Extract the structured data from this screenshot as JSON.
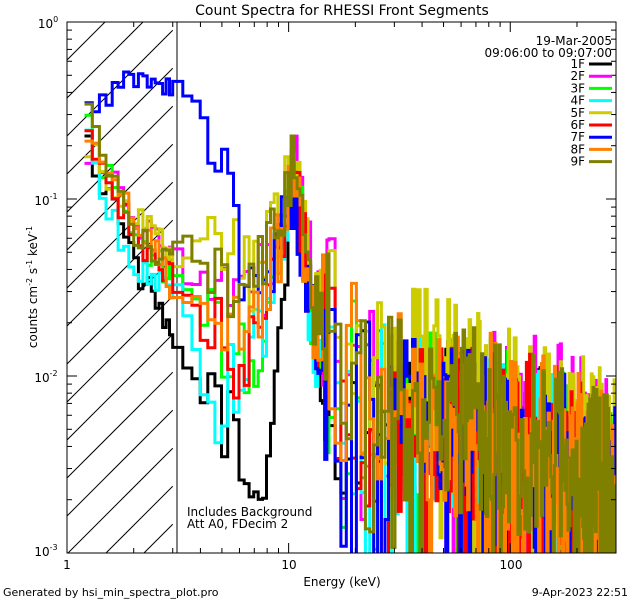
{
  "chart_data": {
    "type": "line",
    "title": "Count Spectra for RHESSI Front Segments",
    "xlabel": "Energy (keV)",
    "ylabel_parts": [
      "counts cm",
      "-2",
      " s",
      "-1",
      " keV",
      "-1"
    ],
    "xscale": "log",
    "yscale": "log",
    "xlim": [
      1,
      300
    ],
    "ylim": [
      0.001,
      1
    ],
    "x_ticks": [
      {
        "value": 10,
        "label": "10"
      },
      {
        "value": 100,
        "label": "100"
      }
    ],
    "x_tick_extra": {
      "value": 1,
      "label": "1"
    },
    "y_ticks": [
      {
        "value": 1,
        "base": "10",
        "exp": "0"
      },
      {
        "value": 0.1,
        "base": "10",
        "exp": "-1"
      },
      {
        "value": 0.01,
        "base": "10",
        "exp": "-2"
      },
      {
        "value": 0.001,
        "base": "10",
        "exp": "-3"
      }
    ],
    "date": "19-Mar-2005",
    "time_range": "09:06:00 to 09:07:00",
    "notes": [
      "Includes Background",
      "Att A0, FDecim 2"
    ],
    "hatched_region": {
      "x_from": 1,
      "x_to": 3
    },
    "footer_left": "Generated by hsi_min_spectra_plot.pro",
    "footer_right": "9-Apr-2023 22:51",
    "legend_position": "top-right",
    "series": [
      {
        "name": "1F",
        "color": "#000000",
        "anchors": [
          [
            1.2,
            0.2
          ],
          [
            1.4,
            0.12
          ],
          [
            1.6,
            0.095
          ],
          [
            1.8,
            0.07
          ],
          [
            2.0,
            0.04
          ],
          [
            2.3,
            0.03
          ],
          [
            2.6,
            0.022
          ],
          [
            3.0,
            0.014
          ],
          [
            3.5,
            0.01
          ],
          [
            4.0,
            0.008
          ],
          [
            5.0,
            0.006
          ],
          [
            6.0,
            0.003
          ],
          [
            7.0,
            0.002
          ],
          [
            8.0,
            0.004
          ],
          [
            9.0,
            0.02
          ],
          [
            10.5,
            0.13
          ],
          [
            11.5,
            0.05
          ],
          [
            13,
            0.015
          ],
          [
            16,
            0.008
          ],
          [
            20,
            0.007
          ],
          [
            30,
            0.005
          ],
          [
            50,
            0.005
          ],
          [
            80,
            0.004
          ],
          [
            120,
            0.004
          ],
          [
            200,
            0.003
          ],
          [
            300,
            0.002
          ]
        ]
      },
      {
        "name": "2F",
        "color": "#ff00ff",
        "anchors": [
          [
            1.2,
            0.18
          ],
          [
            1.4,
            0.16
          ],
          [
            1.6,
            0.13
          ],
          [
            1.8,
            0.11
          ],
          [
            2.0,
            0.07
          ],
          [
            2.5,
            0.06
          ],
          [
            3.0,
            0.05
          ],
          [
            3.5,
            0.035
          ],
          [
            4.0,
            0.033
          ],
          [
            5.0,
            0.03
          ],
          [
            6.0,
            0.027
          ],
          [
            7.0,
            0.03
          ],
          [
            8.0,
            0.04
          ],
          [
            9.0,
            0.06
          ],
          [
            10.5,
            0.15
          ],
          [
            11.5,
            0.06
          ],
          [
            13,
            0.03
          ],
          [
            16,
            0.015
          ],
          [
            20,
            0.011
          ],
          [
            30,
            0.007
          ],
          [
            50,
            0.006
          ],
          [
            80,
            0.005
          ],
          [
            120,
            0.005
          ],
          [
            200,
            0.004
          ],
          [
            300,
            0.0025
          ]
        ]
      },
      {
        "name": "3F",
        "color": "#00ff00",
        "anchors": [
          [
            1.2,
            0.3
          ],
          [
            1.4,
            0.14
          ],
          [
            1.6,
            0.12
          ],
          [
            1.8,
            0.09
          ],
          [
            2.0,
            0.06
          ],
          [
            2.5,
            0.045
          ],
          [
            3.0,
            0.035
          ],
          [
            3.5,
            0.028
          ],
          [
            4.0,
            0.02
          ],
          [
            5.0,
            0.015
          ],
          [
            6.0,
            0.012
          ],
          [
            7.0,
            0.012
          ],
          [
            8.0,
            0.02
          ],
          [
            9.0,
            0.06
          ],
          [
            10.5,
            0.16
          ],
          [
            11.5,
            0.06
          ],
          [
            13,
            0.02
          ],
          [
            16,
            0.01
          ],
          [
            20,
            0.008
          ],
          [
            30,
            0.006
          ],
          [
            50,
            0.006
          ],
          [
            80,
            0.005
          ],
          [
            120,
            0.004
          ],
          [
            200,
            0.003
          ],
          [
            300,
            0.002
          ]
        ]
      },
      {
        "name": "4F",
        "color": "#00ffff",
        "anchors": [
          [
            1.2,
            0.22
          ],
          [
            1.4,
            0.1
          ],
          [
            1.6,
            0.08
          ],
          [
            1.8,
            0.045
          ],
          [
            2.0,
            0.04
          ],
          [
            2.5,
            0.035
          ],
          [
            3.0,
            0.03
          ],
          [
            3.5,
            0.02
          ],
          [
            4.0,
            0.009
          ],
          [
            4.5,
            0.006
          ],
          [
            5.0,
            0.008
          ],
          [
            6.0,
            0.01
          ],
          [
            7.0,
            0.015
          ],
          [
            8.0,
            0.025
          ],
          [
            9.0,
            0.05
          ],
          [
            10.5,
            0.12
          ],
          [
            11.5,
            0.05
          ],
          [
            13,
            0.015
          ],
          [
            16,
            0.009
          ],
          [
            20,
            0.007
          ],
          [
            30,
            0.005
          ],
          [
            50,
            0.005
          ],
          [
            80,
            0.004
          ],
          [
            120,
            0.004
          ],
          [
            200,
            0.003
          ],
          [
            300,
            0.002
          ]
        ]
      },
      {
        "name": "5F",
        "color": "#cccc00",
        "anchors": [
          [
            1.2,
            0.2
          ],
          [
            1.4,
            0.15
          ],
          [
            1.6,
            0.12
          ],
          [
            1.8,
            0.1
          ],
          [
            2.0,
            0.08
          ],
          [
            2.5,
            0.06
          ],
          [
            3.0,
            0.045
          ],
          [
            3.5,
            0.045
          ],
          [
            4.0,
            0.06
          ],
          [
            5.0,
            0.05
          ],
          [
            6.0,
            0.04
          ],
          [
            7.0,
            0.04
          ],
          [
            8.0,
            0.06
          ],
          [
            9.0,
            0.08
          ],
          [
            10.5,
            0.15
          ],
          [
            11.5,
            0.07
          ],
          [
            13,
            0.03
          ],
          [
            16,
            0.015
          ],
          [
            20,
            0.012
          ],
          [
            30,
            0.01
          ],
          [
            50,
            0.008
          ],
          [
            80,
            0.006
          ],
          [
            120,
            0.005
          ],
          [
            200,
            0.004
          ],
          [
            300,
            0.003
          ]
        ]
      },
      {
        "name": "6F",
        "color": "#ff0000",
        "anchors": [
          [
            1.2,
            0.25
          ],
          [
            1.4,
            0.15
          ],
          [
            1.6,
            0.11
          ],
          [
            1.8,
            0.08
          ],
          [
            2.0,
            0.06
          ],
          [
            2.5,
            0.045
          ],
          [
            3.0,
            0.035
          ],
          [
            3.5,
            0.025
          ],
          [
            4.0,
            0.018
          ],
          [
            5.0,
            0.015
          ],
          [
            6.0,
            0.012
          ],
          [
            7.0,
            0.015
          ],
          [
            8.0,
            0.03
          ],
          [
            9.0,
            0.06
          ],
          [
            10.5,
            0.14
          ],
          [
            11.5,
            0.05
          ],
          [
            13,
            0.02
          ],
          [
            16,
            0.01
          ],
          [
            20,
            0.007
          ],
          [
            30,
            0.005
          ],
          [
            50,
            0.005
          ],
          [
            80,
            0.004
          ],
          [
            120,
            0.004
          ],
          [
            200,
            0.003
          ],
          [
            300,
            0.002
          ]
        ]
      },
      {
        "name": "7F",
        "color": "#0000ff",
        "anchors": [
          [
            1.2,
            0.32
          ],
          [
            1.5,
            0.35
          ],
          [
            1.8,
            0.45
          ],
          [
            2.0,
            0.48
          ],
          [
            2.4,
            0.44
          ],
          [
            2.8,
            0.43
          ],
          [
            3.0,
            0.42
          ],
          [
            3.5,
            0.35
          ],
          [
            4.0,
            0.3
          ],
          [
            4.5,
            0.25
          ],
          [
            5.0,
            0.15
          ],
          [
            5.5,
            0.07
          ],
          [
            6.0,
            0.04
          ],
          [
            7.0,
            0.035
          ],
          [
            8.0,
            0.03
          ],
          [
            9.0,
            0.05
          ],
          [
            10.5,
            0.12
          ],
          [
            11.5,
            0.05
          ],
          [
            13,
            0.015
          ],
          [
            16,
            0.008
          ],
          [
            20,
            0.006
          ],
          [
            30,
            0.005
          ],
          [
            50,
            0.004
          ],
          [
            80,
            0.004
          ],
          [
            120,
            0.003
          ],
          [
            200,
            0.003
          ],
          [
            300,
            0.002
          ]
        ]
      },
      {
        "name": "8F",
        "color": "#ff8000",
        "anchors": [
          [
            1.2,
            0.25
          ],
          [
            1.4,
            0.17
          ],
          [
            1.6,
            0.13
          ],
          [
            1.8,
            0.1
          ],
          [
            2.0,
            0.07
          ],
          [
            2.5,
            0.05
          ],
          [
            3.0,
            0.03
          ],
          [
            3.5,
            0.03
          ],
          [
            4.0,
            0.025
          ],
          [
            5.0,
            0.02
          ],
          [
            6.0,
            0.018
          ],
          [
            7.0,
            0.02
          ],
          [
            8.0,
            0.035
          ],
          [
            9.0,
            0.06
          ],
          [
            10.5,
            0.14
          ],
          [
            11.5,
            0.06
          ],
          [
            13,
            0.02
          ],
          [
            16,
            0.012
          ],
          [
            20,
            0.009
          ],
          [
            30,
            0.007
          ],
          [
            50,
            0.006
          ],
          [
            80,
            0.005
          ],
          [
            120,
            0.004
          ],
          [
            200,
            0.003
          ],
          [
            300,
            0.002
          ]
        ]
      },
      {
        "name": "9F",
        "color": "#808000",
        "anchors": [
          [
            1.2,
            0.36
          ],
          [
            1.4,
            0.16
          ],
          [
            1.6,
            0.12
          ],
          [
            1.8,
            0.08
          ],
          [
            2.0,
            0.06
          ],
          [
            2.5,
            0.05
          ],
          [
            3.0,
            0.06
          ],
          [
            3.5,
            0.05
          ],
          [
            4.0,
            0.04
          ],
          [
            5.0,
            0.035
          ],
          [
            6.0,
            0.04
          ],
          [
            7.0,
            0.045
          ],
          [
            8.0,
            0.05
          ],
          [
            9.0,
            0.07
          ],
          [
            10.5,
            0.15
          ],
          [
            11.5,
            0.06
          ],
          [
            13,
            0.025
          ],
          [
            16,
            0.013
          ],
          [
            20,
            0.01
          ],
          [
            30,
            0.007
          ],
          [
            50,
            0.006
          ],
          [
            80,
            0.005
          ],
          [
            120,
            0.004
          ],
          [
            200,
            0.003
          ],
          [
            300,
            0.002
          ]
        ]
      }
    ]
  }
}
